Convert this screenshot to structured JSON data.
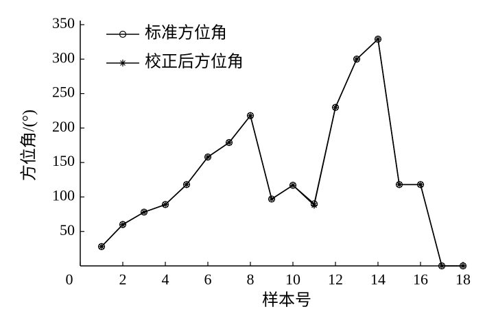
{
  "chart_data": {
    "type": "line",
    "x_label": "样本号",
    "y_label": "方位角/(°)",
    "x": [
      1,
      2,
      3,
      4,
      5,
      6,
      7,
      8,
      9,
      10,
      11,
      12,
      13,
      14,
      15,
      16,
      17,
      18
    ],
    "series": [
      {
        "name": "标准方位角",
        "color": "#000000",
        "marker": "circle",
        "values": [
          28,
          60,
          78,
          89,
          118,
          158,
          179,
          218,
          97,
          117,
          90,
          230,
          300,
          329,
          118,
          118,
          0,
          0
        ]
      },
      {
        "name": "校正后方位角",
        "color": "#000000",
        "marker": "star",
        "values": [
          28,
          60,
          78,
          89,
          118,
          158,
          179,
          218,
          97,
          117,
          88,
          230,
          300,
          329,
          118,
          118,
          0,
          0
        ]
      }
    ],
    "xlim": [
      0,
      18
    ],
    "xticks": [
      0,
      2,
      4,
      6,
      8,
      10,
      12,
      14,
      16,
      18
    ],
    "ylim": [
      0,
      350
    ],
    "yticks": [
      50,
      100,
      150,
      200,
      250,
      300,
      350
    ],
    "legend": "upper-left",
    "grid": false
  }
}
